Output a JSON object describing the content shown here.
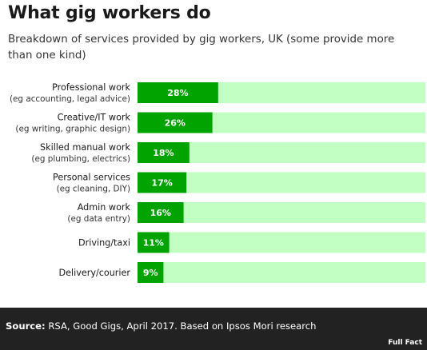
{
  "title": "What gig workers do",
  "subtitle": "Breakdown of services provided by gig workers, UK (some provide more than one kind)",
  "colors": {
    "bar": "#00a300",
    "track": "#c2ffc2",
    "footer": "#222222"
  },
  "chart_data": {
    "type": "bar",
    "orientation": "horizontal",
    "categories": [
      {
        "label": "Professional work",
        "sublabel": "(eg accounting, legal advice)"
      },
      {
        "label": "Creative/IT work",
        "sublabel": "(eg writing, graphic design)"
      },
      {
        "label": "Skilled manual work",
        "sublabel": "(eg plumbing, electrics)"
      },
      {
        "label": "Personal services",
        "sublabel": "(eg cleaning, DIY)"
      },
      {
        "label": "Admin work",
        "sublabel": "(eg data entry)"
      },
      {
        "label": "Driving/taxi",
        "sublabel": ""
      },
      {
        "label": "Delivery/courier",
        "sublabel": ""
      }
    ],
    "values": [
      28,
      26,
      18,
      17,
      16,
      11,
      9
    ],
    "value_labels": [
      "28%",
      "26%",
      "18%",
      "17%",
      "16%",
      "11%",
      "9%"
    ],
    "unit": "%",
    "xlim": [
      0,
      100
    ],
    "grid": false,
    "legend": "none"
  },
  "footer": {
    "source_prefix": "Source:",
    "source_text": " RSA, Good Gigs, April 2017. Based on Ipsos Mori research",
    "logo": "Full Fact"
  }
}
